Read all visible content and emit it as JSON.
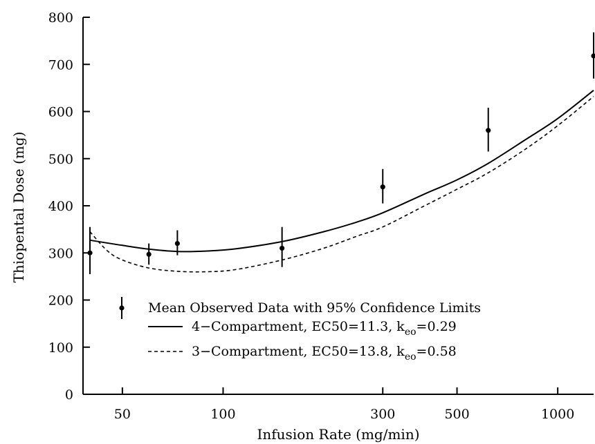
{
  "chart_data": {
    "type": "line",
    "xlabel": "Infusion Rate (mg/min)",
    "ylabel": "Thiopental Dose (mg)",
    "x_scale": "log",
    "xlim": [
      38,
      1300
    ],
    "ylim": [
      0,
      800
    ],
    "x_ticks": [
      50,
      100,
      300,
      500,
      1000
    ],
    "x_tick_labels": [
      "50",
      "100",
      "300",
      "500",
      "1000"
    ],
    "y_ticks": [
      0,
      100,
      200,
      300,
      400,
      500,
      600,
      700,
      800
    ],
    "y_tick_labels": [
      "0",
      "100",
      "200",
      "300",
      "400",
      "500",
      "600",
      "700",
      "800"
    ],
    "grid": false,
    "legend_position": "bottom-right",
    "series": [
      {
        "name": "Mean Observed Data with 95% Confidence Limits",
        "kind": "errorbar",
        "x": [
          40,
          60,
          73,
          150,
          300,
          620,
          1280
        ],
        "y": [
          300,
          297,
          320,
          310,
          440,
          560,
          718
        ],
        "lower": [
          255,
          275,
          295,
          270,
          405,
          515,
          670
        ],
        "upper": [
          355,
          320,
          348,
          355,
          478,
          608,
          768
        ]
      },
      {
        "name": "4−Compartment, EC50=11.3, k",
        "name_sub": "eo",
        "name_suffix": "=0.29",
        "kind": "solid",
        "x": [
          40,
          50,
          60,
          73,
          90,
          110,
          150,
          200,
          250,
          300,
          400,
          500,
          620,
          800,
          1000,
          1280
        ],
        "y": [
          327,
          316,
          308,
          303,
          304,
          309,
          324,
          345,
          365,
          385,
          425,
          455,
          490,
          540,
          585,
          645
        ]
      },
      {
        "name": "3−Compartment, EC50=13.8, k",
        "name_sub": "eo",
        "name_suffix": "=0.58",
        "kind": "dashed",
        "x": [
          40,
          45,
          50,
          60,
          73,
          90,
          110,
          150,
          200,
          250,
          300,
          400,
          500,
          620,
          800,
          1000,
          1280
        ],
        "y": [
          345,
          305,
          285,
          268,
          261,
          260,
          265,
          285,
          310,
          335,
          355,
          400,
          435,
          470,
          520,
          570,
          632
        ]
      }
    ]
  }
}
